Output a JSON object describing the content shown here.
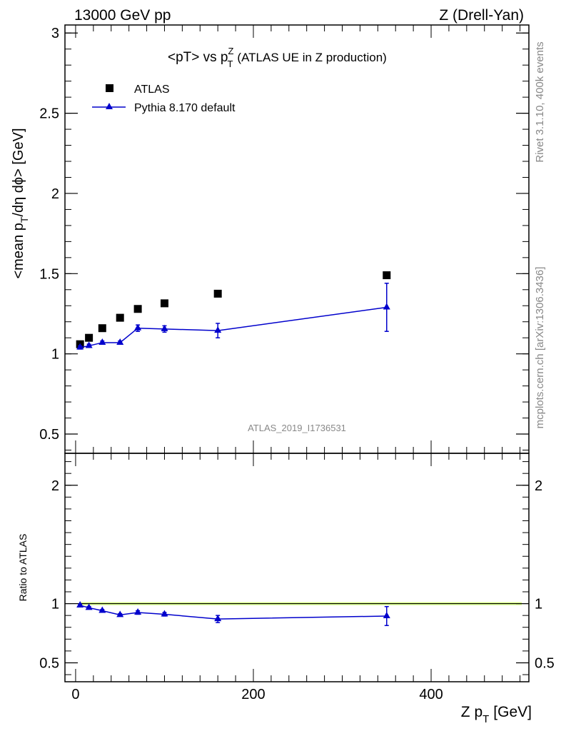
{
  "header": {
    "left": "13000 GeV pp",
    "right": "Z (Drell-Yan)"
  },
  "side_text": {
    "rivet": "Rivet 3.1.10,  400k events",
    "mcplots": "mcplots.cern.ch [arXiv:1306.3436]"
  },
  "watermark": "ATLAS_2019_I1736531",
  "chart_data": [
    {
      "type": "scatter",
      "title_main": "<pT> vs p",
      "title_sup": "Z",
      "title_sub": "T",
      "title_rest": "(ATLAS UE in Z production)",
      "ylabel": "<mean p_T/dη dϕ> [GeV]",
      "ylabel_pre": "<mean p",
      "ylabel_sub": "T",
      "ylabel_post": "/dη dϕ> [GeV]",
      "xlim": [
        -12,
        510
      ],
      "ylim": [
        0.38,
        3.05
      ],
      "yticks": [
        "0.5",
        "1",
        "1.5",
        "2",
        "2.5",
        "3"
      ],
      "legend": [
        {
          "label": "ATLAS",
          "marker": "square",
          "color": "#000000"
        },
        {
          "label": "Pythia 8.170 default",
          "marker": "triangle",
          "color": "#0000cc"
        }
      ],
      "series": [
        {
          "name": "ATLAS",
          "color": "#000000",
          "x": [
            5,
            15,
            30,
            50,
            70,
            100,
            160,
            350
          ],
          "y": [
            1.06,
            1.1,
            1.16,
            1.225,
            1.28,
            1.315,
            1.375,
            1.49
          ]
        },
        {
          "name": "Pythia 8.170 default",
          "color": "#0000cc",
          "x": [
            5,
            15,
            30,
            50,
            70,
            100,
            160,
            350
          ],
          "y": [
            1.04,
            1.05,
            1.07,
            1.07,
            1.16,
            1.155,
            1.145,
            1.29
          ],
          "err": [
            0.01,
            0.01,
            0.01,
            0.01,
            0.02,
            0.02,
            0.045,
            0.15
          ]
        }
      ]
    },
    {
      "type": "scatter",
      "ylabel": "Ratio to ATLAS",
      "xlabel_pre": "Z p",
      "xlabel_sub": "T",
      "xlabel_post": "[GeV]",
      "xlim": [
        -12,
        510
      ],
      "ylim": [
        0.34,
        2.27
      ],
      "yticks": [
        "0.5",
        "1",
        "2"
      ],
      "xticks": [
        "0",
        "200",
        "400"
      ],
      "band": {
        "color": "#ccff66",
        "halfwidth": 0.012
      },
      "series": [
        {
          "name": "Pythia 8.170 default",
          "color": "#0000cc",
          "x": [
            5,
            15,
            30,
            50,
            70,
            100,
            160,
            350
          ],
          "y": [
            0.985,
            0.965,
            0.94,
            0.905,
            0.925,
            0.91,
            0.87,
            0.895
          ],
          "err": [
            0.01,
            0.01,
            0.01,
            0.01,
            0.015,
            0.015,
            0.03,
            0.08
          ]
        }
      ]
    }
  ]
}
